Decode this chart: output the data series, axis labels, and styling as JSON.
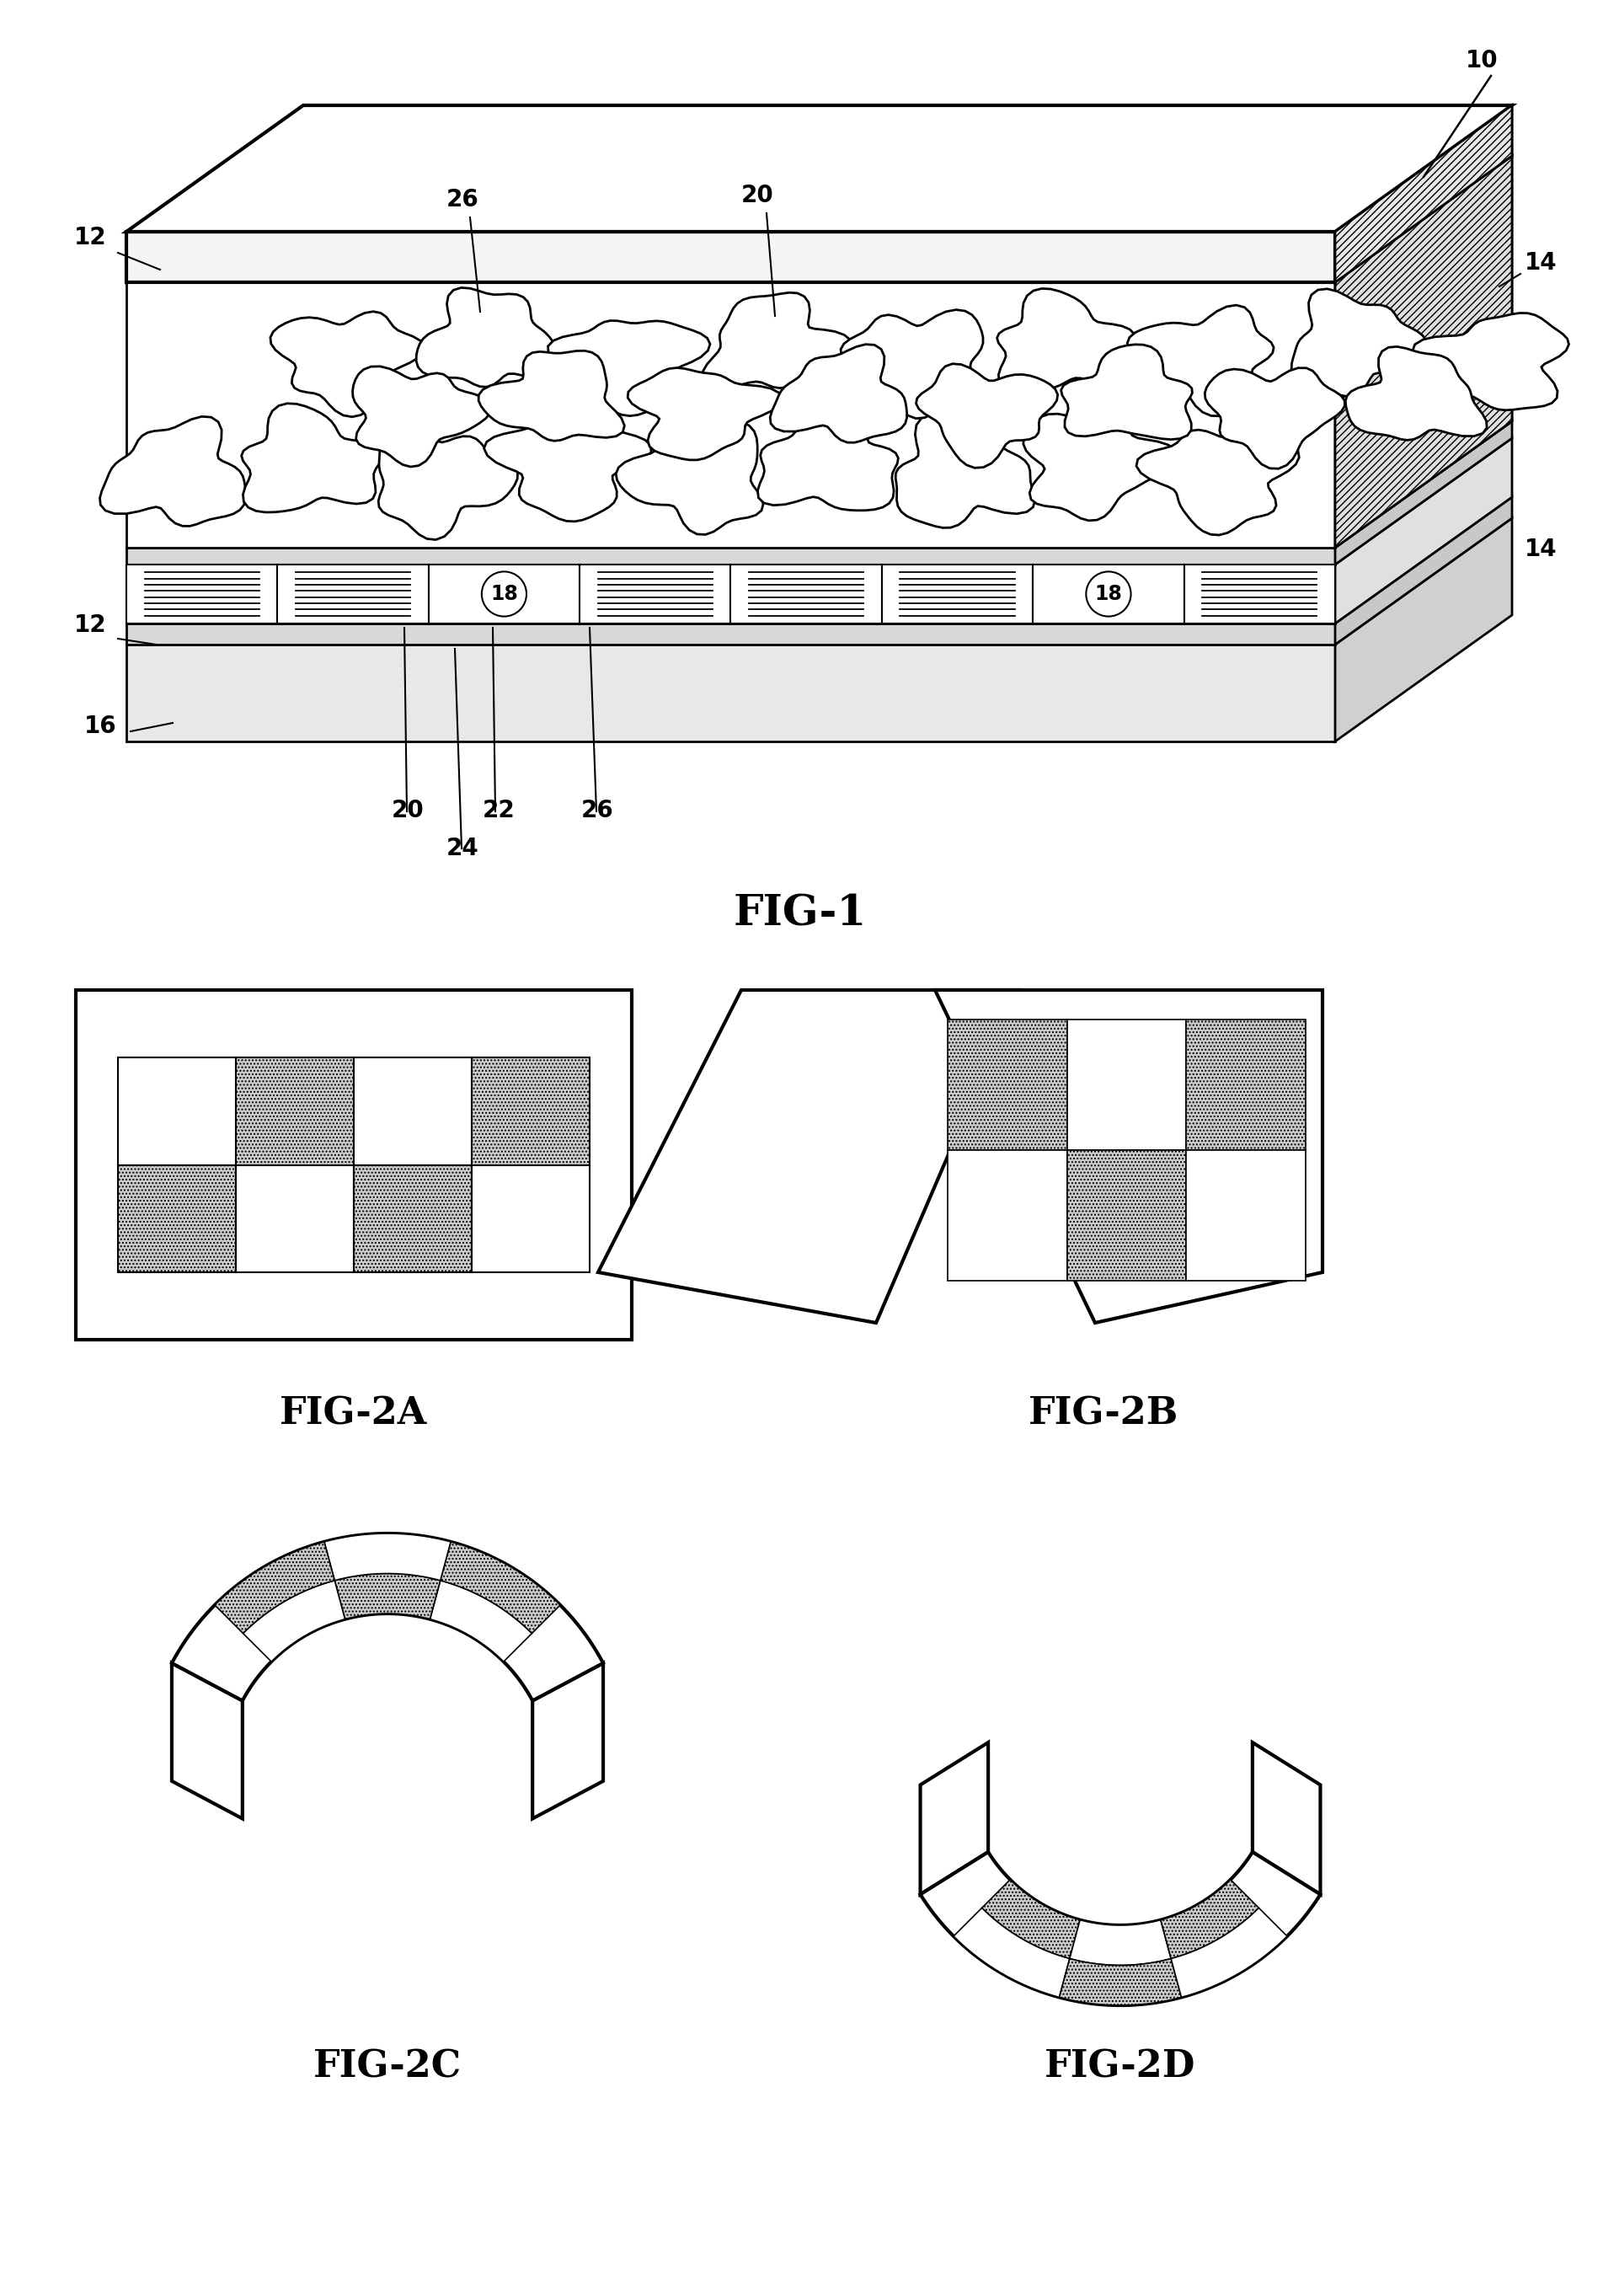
{
  "bg_color": "#ffffff",
  "line_color": "#000000",
  "fig_width": 18.83,
  "fig_height": 27.05,
  "fig1_label": "FIG-1",
  "fig2a_label": "FIG-2A",
  "fig2b_label": "FIG-2B",
  "fig2c_label": "FIG-2C",
  "fig2d_label": "FIG-2D",
  "label_fontsize": 32,
  "ref_fontsize": 20,
  "gray_light": "#cccccc",
  "gray_mid": "#aaaaaa",
  "gray_dark": "#888888"
}
